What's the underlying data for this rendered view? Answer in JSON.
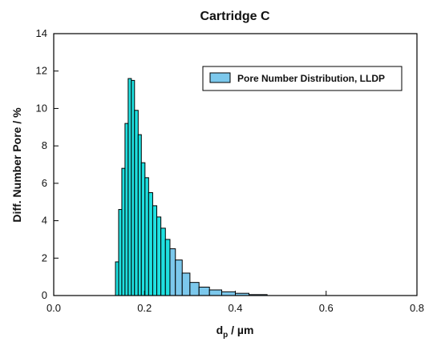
{
  "chart_data": {
    "type": "bar",
    "title": "Cartridge C",
    "xlabel_main": "d",
    "xlabel_sub": "p",
    "xlabel_unit": " / µm",
    "ylabel": "Diff. Number Pore / %",
    "xlim": [
      0.0,
      0.8
    ],
    "ylim": [
      0,
      14
    ],
    "xticks": [
      0.0,
      0.2,
      0.4,
      0.6,
      0.8
    ],
    "xtick_labels": [
      "0.0",
      "0.2",
      "0.4",
      "0.6",
      "0.8"
    ],
    "yticks": [
      0,
      2,
      4,
      6,
      8,
      10,
      12,
      14
    ],
    "ytick_labels": [
      "0",
      "2",
      "4",
      "6",
      "8",
      "10",
      "12",
      "14"
    ],
    "grid": false,
    "legend_position": "top-right",
    "series": [
      {
        "name": "Pore Number Distribution, LLDP",
        "bin_edges": [
          0.136,
          0.143,
          0.15,
          0.157,
          0.164,
          0.171,
          0.178,
          0.186,
          0.193,
          0.201,
          0.209,
          0.218,
          0.227,
          0.236,
          0.246,
          0.256,
          0.268,
          0.283,
          0.3,
          0.32,
          0.343,
          0.37,
          0.4,
          0.43,
          0.47
        ],
        "values": [
          1.8,
          4.6,
          6.8,
          9.2,
          11.6,
          11.5,
          9.9,
          8.6,
          7.1,
          6.3,
          5.5,
          4.8,
          4.2,
          3.6,
          3.0,
          2.5,
          1.9,
          1.2,
          0.7,
          0.45,
          0.3,
          0.2,
          0.12,
          0.05
        ],
        "colors": {
          "dense_fill": "#1fe0e0",
          "tail_fill": "#7cc8ec",
          "stroke": "#000000"
        }
      }
    ]
  }
}
